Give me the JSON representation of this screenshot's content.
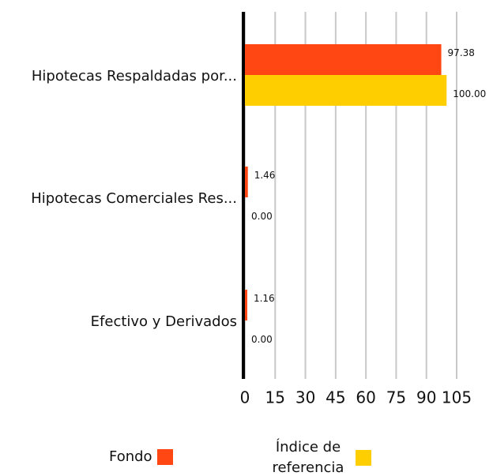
{
  "chart_data": {
    "type": "barh",
    "categories": [
      "Hipotecas Respaldadas por...",
      "Hipotecas Comerciales Res...",
      "Efectivo y Derivados"
    ],
    "series": [
      {
        "name": "Fondo",
        "color": "#ff4713",
        "values": [
          97.38,
          1.46,
          1.16
        ],
        "value_labels": [
          "97.38",
          "1.46",
          "1.16"
        ]
      },
      {
        "name": "Índice de referencia",
        "color": "#ffce00",
        "values": [
          100,
          0,
          0
        ],
        "value_labels": [
          "100.00",
          "0.00",
          "0.00"
        ]
      }
    ],
    "xlim": [
      0,
      105
    ],
    "xticks": [
      0,
      15,
      30,
      45,
      60,
      75,
      90,
      105
    ],
    "grid": true
  }
}
